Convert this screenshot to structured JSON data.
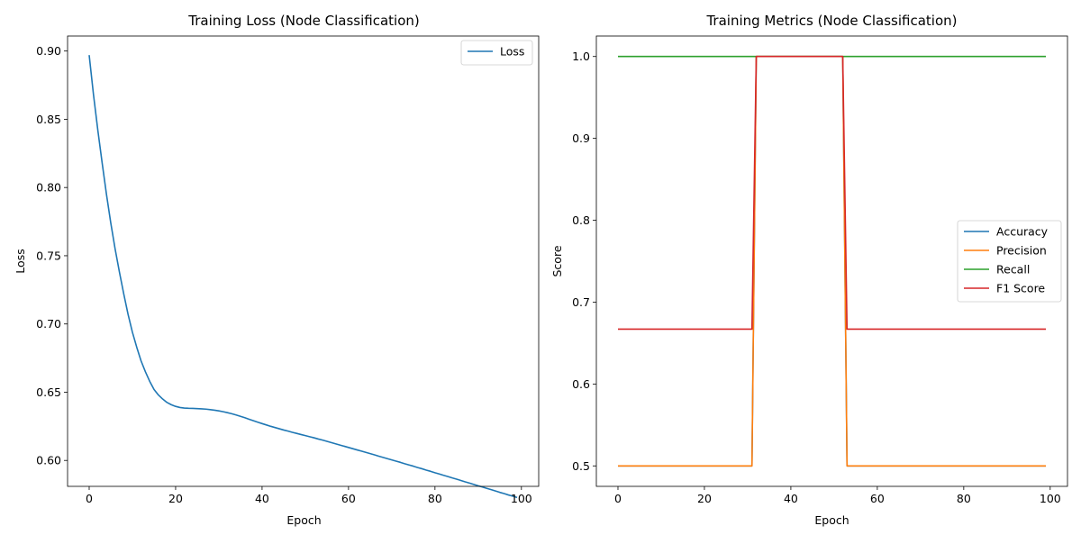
{
  "chart_data": [
    {
      "type": "line",
      "title": "Training Loss (Node Classification)",
      "xlabel": "Epoch",
      "ylabel": "Loss",
      "xlim": [
        -5,
        104
      ],
      "ylim": [
        0.581,
        0.911
      ],
      "xticks": [
        0,
        20,
        40,
        60,
        80,
        100
      ],
      "yticks": [
        0.6,
        0.65,
        0.7,
        0.75,
        0.8,
        0.85,
        0.9
      ],
      "ytick_decimals": 2,
      "legend": "top-right",
      "grid": false,
      "x_start": 0,
      "series": [
        {
          "name": "Loss",
          "color": "#1f77b4",
          "values": [
            0.897,
            0.868,
            0.842,
            0.818,
            0.795,
            0.774,
            0.755,
            0.738,
            0.722,
            0.707,
            0.694,
            0.683,
            0.673,
            0.665,
            0.658,
            0.652,
            0.648,
            0.645,
            0.6425,
            0.6408,
            0.6396,
            0.6388,
            0.6384,
            0.6382,
            0.6381,
            0.638,
            0.6378,
            0.6376,
            0.6372,
            0.6368,
            0.6363,
            0.6357,
            0.635,
            0.6342,
            0.6333,
            0.6323,
            0.6313,
            0.6302,
            0.6291,
            0.628,
            0.627,
            0.626,
            0.625,
            0.6241,
            0.6232,
            0.6223,
            0.6215,
            0.6206,
            0.6198,
            0.619,
            0.6182,
            0.6174,
            0.6166,
            0.6157,
            0.6149,
            0.614,
            0.6131,
            0.6122,
            0.6113,
            0.6104,
            0.6095,
            0.6086,
            0.6077,
            0.6068,
            0.6059,
            0.605,
            0.6041,
            0.6031,
            0.6022,
            0.6013,
            0.6004,
            0.5995,
            0.5986,
            0.5976,
            0.5967,
            0.5958,
            0.5948,
            0.5939,
            0.5929,
            0.592,
            0.591,
            0.5901,
            0.5891,
            0.5882,
            0.5872,
            0.5863,
            0.5853,
            0.5843,
            0.5834,
            0.5824,
            0.5814,
            0.5805,
            0.5795,
            0.5786,
            0.5776,
            0.5766,
            0.5757,
            0.5747,
            0.5738,
            0.5728
          ]
        }
      ]
    },
    {
      "type": "line",
      "title": "Training Metrics (Node Classification)",
      "xlabel": "Epoch",
      "ylabel": "Score",
      "xlim": [
        -5,
        104
      ],
      "ylim": [
        0.475,
        1.025
      ],
      "xticks": [
        0,
        20,
        40,
        60,
        80,
        100
      ],
      "yticks": [
        0.5,
        0.6,
        0.7,
        0.8,
        0.9,
        1.0
      ],
      "ytick_decimals": 1,
      "legend": "center-right",
      "grid": false,
      "x_start": 0,
      "series": [
        {
          "name": "Accuracy",
          "color": "#1f77b4",
          "values": [
            0.5,
            0.5,
            0.5,
            0.5,
            0.5,
            0.5,
            0.5,
            0.5,
            0.5,
            0.5,
            0.5,
            0.5,
            0.5,
            0.5,
            0.5,
            0.5,
            0.5,
            0.5,
            0.5,
            0.5,
            0.5,
            0.5,
            0.5,
            0.5,
            0.5,
            0.5,
            0.5,
            0.5,
            0.5,
            0.5,
            0.5,
            0.5,
            1.0,
            1.0,
            1.0,
            1.0,
            1.0,
            1.0,
            1.0,
            1.0,
            1.0,
            1.0,
            1.0,
            1.0,
            1.0,
            1.0,
            1.0,
            1.0,
            1.0,
            1.0,
            1.0,
            1.0,
            1.0,
            0.5,
            0.5,
            0.5,
            0.5,
            0.5,
            0.5,
            0.5,
            0.5,
            0.5,
            0.5,
            0.5,
            0.5,
            0.5,
            0.5,
            0.5,
            0.5,
            0.5,
            0.5,
            0.5,
            0.5,
            0.5,
            0.5,
            0.5,
            0.5,
            0.5,
            0.5,
            0.5,
            0.5,
            0.5,
            0.5,
            0.5,
            0.5,
            0.5,
            0.5,
            0.5,
            0.5,
            0.5,
            0.5,
            0.5,
            0.5,
            0.5,
            0.5,
            0.5,
            0.5,
            0.5,
            0.5,
            0.5
          ]
        },
        {
          "name": "Precision",
          "color": "#ff7f0e",
          "values": [
            0.5,
            0.5,
            0.5,
            0.5,
            0.5,
            0.5,
            0.5,
            0.5,
            0.5,
            0.5,
            0.5,
            0.5,
            0.5,
            0.5,
            0.5,
            0.5,
            0.5,
            0.5,
            0.5,
            0.5,
            0.5,
            0.5,
            0.5,
            0.5,
            0.5,
            0.5,
            0.5,
            0.5,
            0.5,
            0.5,
            0.5,
            0.5,
            1.0,
            1.0,
            1.0,
            1.0,
            1.0,
            1.0,
            1.0,
            1.0,
            1.0,
            1.0,
            1.0,
            1.0,
            1.0,
            1.0,
            1.0,
            1.0,
            1.0,
            1.0,
            1.0,
            1.0,
            1.0,
            0.5,
            0.5,
            0.5,
            0.5,
            0.5,
            0.5,
            0.5,
            0.5,
            0.5,
            0.5,
            0.5,
            0.5,
            0.5,
            0.5,
            0.5,
            0.5,
            0.5,
            0.5,
            0.5,
            0.5,
            0.5,
            0.5,
            0.5,
            0.5,
            0.5,
            0.5,
            0.5,
            0.5,
            0.5,
            0.5,
            0.5,
            0.5,
            0.5,
            0.5,
            0.5,
            0.5,
            0.5,
            0.5,
            0.5,
            0.5,
            0.5,
            0.5,
            0.5,
            0.5,
            0.5,
            0.5,
            0.5
          ]
        },
        {
          "name": "Recall",
          "color": "#2ca02c",
          "values": [
            1.0,
            1.0,
            1.0,
            1.0,
            1.0,
            1.0,
            1.0,
            1.0,
            1.0,
            1.0,
            1.0,
            1.0,
            1.0,
            1.0,
            1.0,
            1.0,
            1.0,
            1.0,
            1.0,
            1.0,
            1.0,
            1.0,
            1.0,
            1.0,
            1.0,
            1.0,
            1.0,
            1.0,
            1.0,
            1.0,
            1.0,
            1.0,
            1.0,
            1.0,
            1.0,
            1.0,
            1.0,
            1.0,
            1.0,
            1.0,
            1.0,
            1.0,
            1.0,
            1.0,
            1.0,
            1.0,
            1.0,
            1.0,
            1.0,
            1.0,
            1.0,
            1.0,
            1.0,
            1.0,
            1.0,
            1.0,
            1.0,
            1.0,
            1.0,
            1.0,
            1.0,
            1.0,
            1.0,
            1.0,
            1.0,
            1.0,
            1.0,
            1.0,
            1.0,
            1.0,
            1.0,
            1.0,
            1.0,
            1.0,
            1.0,
            1.0,
            1.0,
            1.0,
            1.0,
            1.0,
            1.0,
            1.0,
            1.0,
            1.0,
            1.0,
            1.0,
            1.0,
            1.0,
            1.0,
            1.0,
            1.0,
            1.0,
            1.0,
            1.0,
            1.0,
            1.0,
            1.0,
            1.0,
            1.0,
            1.0
          ]
        },
        {
          "name": "F1 Score",
          "color": "#d62728",
          "values": [
            0.667,
            0.667,
            0.667,
            0.667,
            0.667,
            0.667,
            0.667,
            0.667,
            0.667,
            0.667,
            0.667,
            0.667,
            0.667,
            0.667,
            0.667,
            0.667,
            0.667,
            0.667,
            0.667,
            0.667,
            0.667,
            0.667,
            0.667,
            0.667,
            0.667,
            0.667,
            0.667,
            0.667,
            0.667,
            0.667,
            0.667,
            0.667,
            1.0,
            1.0,
            1.0,
            1.0,
            1.0,
            1.0,
            1.0,
            1.0,
            1.0,
            1.0,
            1.0,
            1.0,
            1.0,
            1.0,
            1.0,
            1.0,
            1.0,
            1.0,
            1.0,
            1.0,
            1.0,
            0.667,
            0.667,
            0.667,
            0.667,
            0.667,
            0.667,
            0.667,
            0.667,
            0.667,
            0.667,
            0.667,
            0.667,
            0.667,
            0.667,
            0.667,
            0.667,
            0.667,
            0.667,
            0.667,
            0.667,
            0.667,
            0.667,
            0.667,
            0.667,
            0.667,
            0.667,
            0.667,
            0.667,
            0.667,
            0.667,
            0.667,
            0.667,
            0.667,
            0.667,
            0.667,
            0.667,
            0.667,
            0.667,
            0.667,
            0.667,
            0.667,
            0.667,
            0.667,
            0.667,
            0.667,
            0.667,
            0.667
          ]
        }
      ]
    }
  ]
}
